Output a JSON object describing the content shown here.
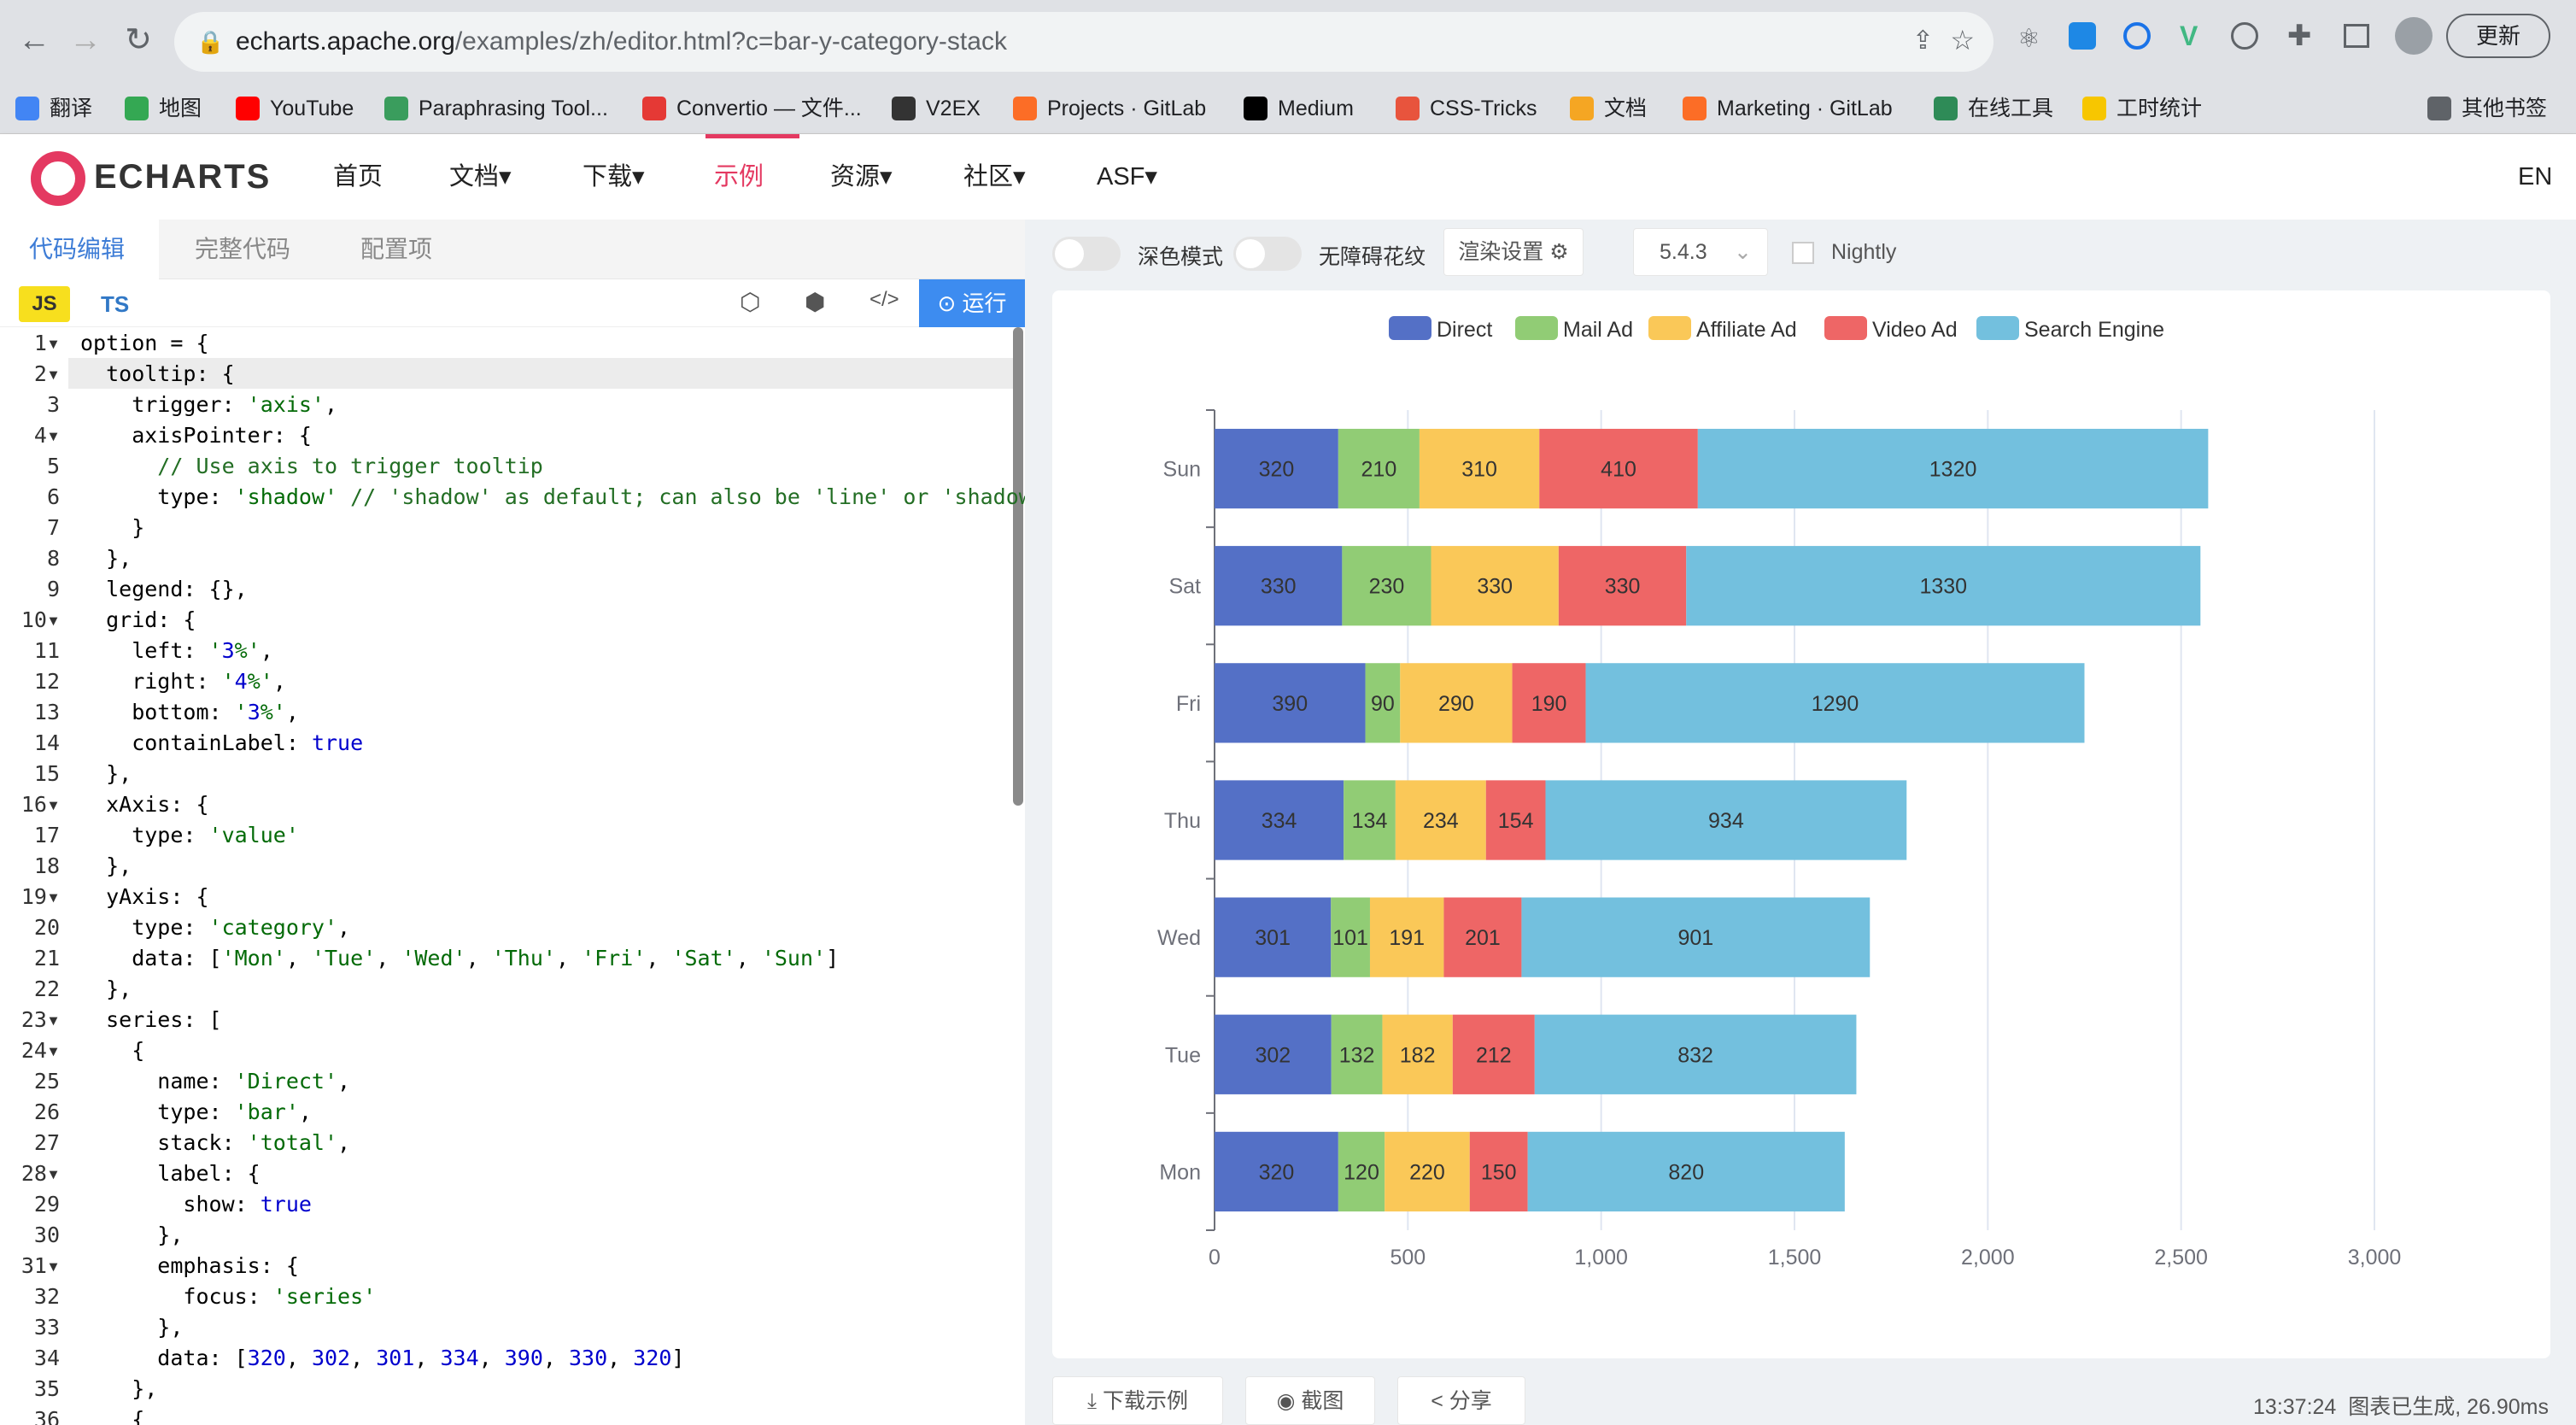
{
  "browser": {
    "url_host": "echarts.apache.org",
    "url_path": "/examples/zh/editor.html?c=bar-y-category-stack",
    "update_label": "更新"
  },
  "bookmarks": [
    {
      "label": "翻译",
      "color": "#4285f4"
    },
    {
      "label": "地图",
      "color": "#34a853"
    },
    {
      "label": "YouTube",
      "color": "#ff0000"
    },
    {
      "label": "Paraphrasing Tool...",
      "color": "#3a9d5d"
    },
    {
      "label": "Convertio — 文件...",
      "color": "#e53935"
    },
    {
      "label": "V2EX",
      "color": "#333333"
    },
    {
      "label": "Projects · GitLab",
      "color": "#fc6d26"
    },
    {
      "label": "Medium",
      "color": "#000000"
    },
    {
      "label": "CSS-Tricks",
      "color": "#e8543d"
    },
    {
      "label": "文档",
      "color": "#f5a623"
    },
    {
      "label": "Marketing · GitLab",
      "color": "#fc6d26"
    },
    {
      "label": "在线工具",
      "color": "#2e8b57"
    },
    {
      "label": "工时统计",
      "color": "#f7c600"
    },
    {
      "label": "其他书签",
      "color": "#5f6368"
    }
  ],
  "site": {
    "logo": "ECHARTS",
    "nav": [
      "首页",
      "文档▾",
      "下载▾",
      "示例",
      "资源▾",
      "社区▾",
      "ASF▾"
    ],
    "lang": "EN"
  },
  "editor": {
    "tabs": [
      "代码编辑",
      "完整代码",
      "配置项"
    ],
    "lang_js": "JS",
    "lang_ts": "TS",
    "run_label": "运行"
  },
  "code_lines": [
    "option = {",
    "  tooltip: {",
    "    trigger: 'axis',",
    "    axisPointer: {",
    "      // Use axis to trigger tooltip",
    "      type: 'shadow' // 'shadow' as default; can also be 'line' or 'shadow'",
    "    }",
    "  },",
    "  legend: {},",
    "  grid: {",
    "    left: '3%',",
    "    right: '4%',",
    "    bottom: '3%',",
    "    containLabel: true",
    "  },",
    "  xAxis: {",
    "    type: 'value'",
    "  },",
    "  yAxis: {",
    "    type: 'category',",
    "    data: ['Mon', 'Tue', 'Wed', 'Thu', 'Fri', 'Sat', 'Sun']",
    "  },",
    "  series: [",
    "    {",
    "      name: 'Direct',",
    "      type: 'bar',",
    "      stack: 'total',",
    "      label: {",
    "        show: true",
    "      },",
    "      emphasis: {",
    "        focus: 'series'",
    "      },",
    "      data: [320, 302, 301, 334, 390, 330, 320]",
    "    },",
    "    {"
  ],
  "controls": {
    "dark_mode": "深色模式",
    "a11y": "无障碍花纹",
    "render_settings": "渲染设置",
    "version": "5.4.3",
    "nightly": "Nightly"
  },
  "bottom": {
    "download": "下载示例",
    "screenshot": "截图",
    "share": "分享",
    "status": "13:37:24  图表已生成, 26.90ms"
  },
  "chart_data": {
    "type": "bar",
    "orientation": "horizontal",
    "stacked": true,
    "categories": [
      "Mon",
      "Tue",
      "Wed",
      "Thu",
      "Fri",
      "Sat",
      "Sun"
    ],
    "series": [
      {
        "name": "Direct",
        "color": "#5470c6",
        "values": [
          320,
          302,
          301,
          334,
          390,
          330,
          320
        ]
      },
      {
        "name": "Mail Ad",
        "color": "#91cc75",
        "values": [
          120,
          132,
          101,
          134,
          90,
          230,
          210
        ]
      },
      {
        "name": "Affiliate Ad",
        "color": "#fac858",
        "values": [
          220,
          182,
          191,
          234,
          290,
          330,
          310
        ]
      },
      {
        "name": "Video Ad",
        "color": "#ee6666",
        "values": [
          150,
          212,
          201,
          154,
          190,
          330,
          410
        ]
      },
      {
        "name": "Search Engine",
        "color": "#73c0de",
        "values": [
          820,
          832,
          901,
          934,
          1290,
          1330,
          1320
        ]
      }
    ],
    "xlim": [
      0,
      3000
    ],
    "xticks": [
      "0",
      "500",
      "1,000",
      "1,500",
      "2,000",
      "2,500",
      "3,000"
    ],
    "legend": "top-center",
    "grid": true
  }
}
